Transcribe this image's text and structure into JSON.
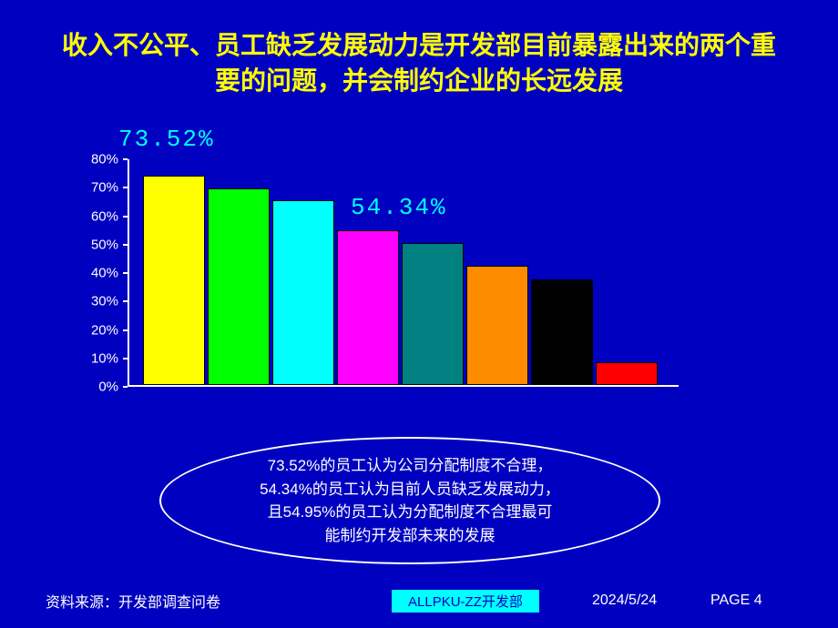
{
  "title": "收入不公平、员工缺乏发展动力是开发部目前暴露出来的两个重要的问题，并会制约企业的长远发展",
  "chart": {
    "type": "bar",
    "ylim": [
      0,
      80
    ],
    "ytick_step": 10,
    "yticks": [
      {
        "value": 0,
        "label": "0%"
      },
      {
        "value": 10,
        "label": "10%"
      },
      {
        "value": 20,
        "label": "20%"
      },
      {
        "value": 30,
        "label": "30%"
      },
      {
        "value": 40,
        "label": "40%"
      },
      {
        "value": 50,
        "label": "50%"
      },
      {
        "value": 60,
        "label": "60%"
      },
      {
        "value": 70,
        "label": "70%"
      },
      {
        "value": 80,
        "label": "80%"
      }
    ],
    "bars": [
      {
        "value": 73.52,
        "color": "#ffff00"
      },
      {
        "value": 69,
        "color": "#00ff00"
      },
      {
        "value": 65,
        "color": "#00ffff"
      },
      {
        "value": 54.34,
        "color": "#ff00ff"
      },
      {
        "value": 50,
        "color": "#008080"
      },
      {
        "value": 42,
        "color": "#ff8c00"
      },
      {
        "value": 37,
        "color": "#000000"
      },
      {
        "value": 8,
        "color": "#ff0000"
      }
    ],
    "data_labels": [
      {
        "text": "73.52%",
        "class": "label1"
      },
      {
        "text": "54.34%",
        "class": "label2"
      }
    ],
    "axis_color": "#ffffff",
    "label_fontsize": 15,
    "background_color": "#0000c0",
    "bar_border_color": "#000000"
  },
  "annotation": {
    "line1": "73.52%的员工认为公司分配制度不合理，",
    "line2": "54.34%的员工认为目前人员缺乏发展动力，",
    "line3": "且54.95%的员工认为分配制度不合理最可",
    "line4": "能制约开发部未来的发展"
  },
  "footer": {
    "source": "资料来源：开发部调查问卷",
    "badge": "ALLPKU-ZZ开发部",
    "date": "2024/5/24",
    "page": "PAGE 4"
  },
  "colors": {
    "background": "#0000c0",
    "title": "#ffff00",
    "text": "#ffffff",
    "data_label": "#00ffff",
    "badge_bg": "#00ffff"
  }
}
